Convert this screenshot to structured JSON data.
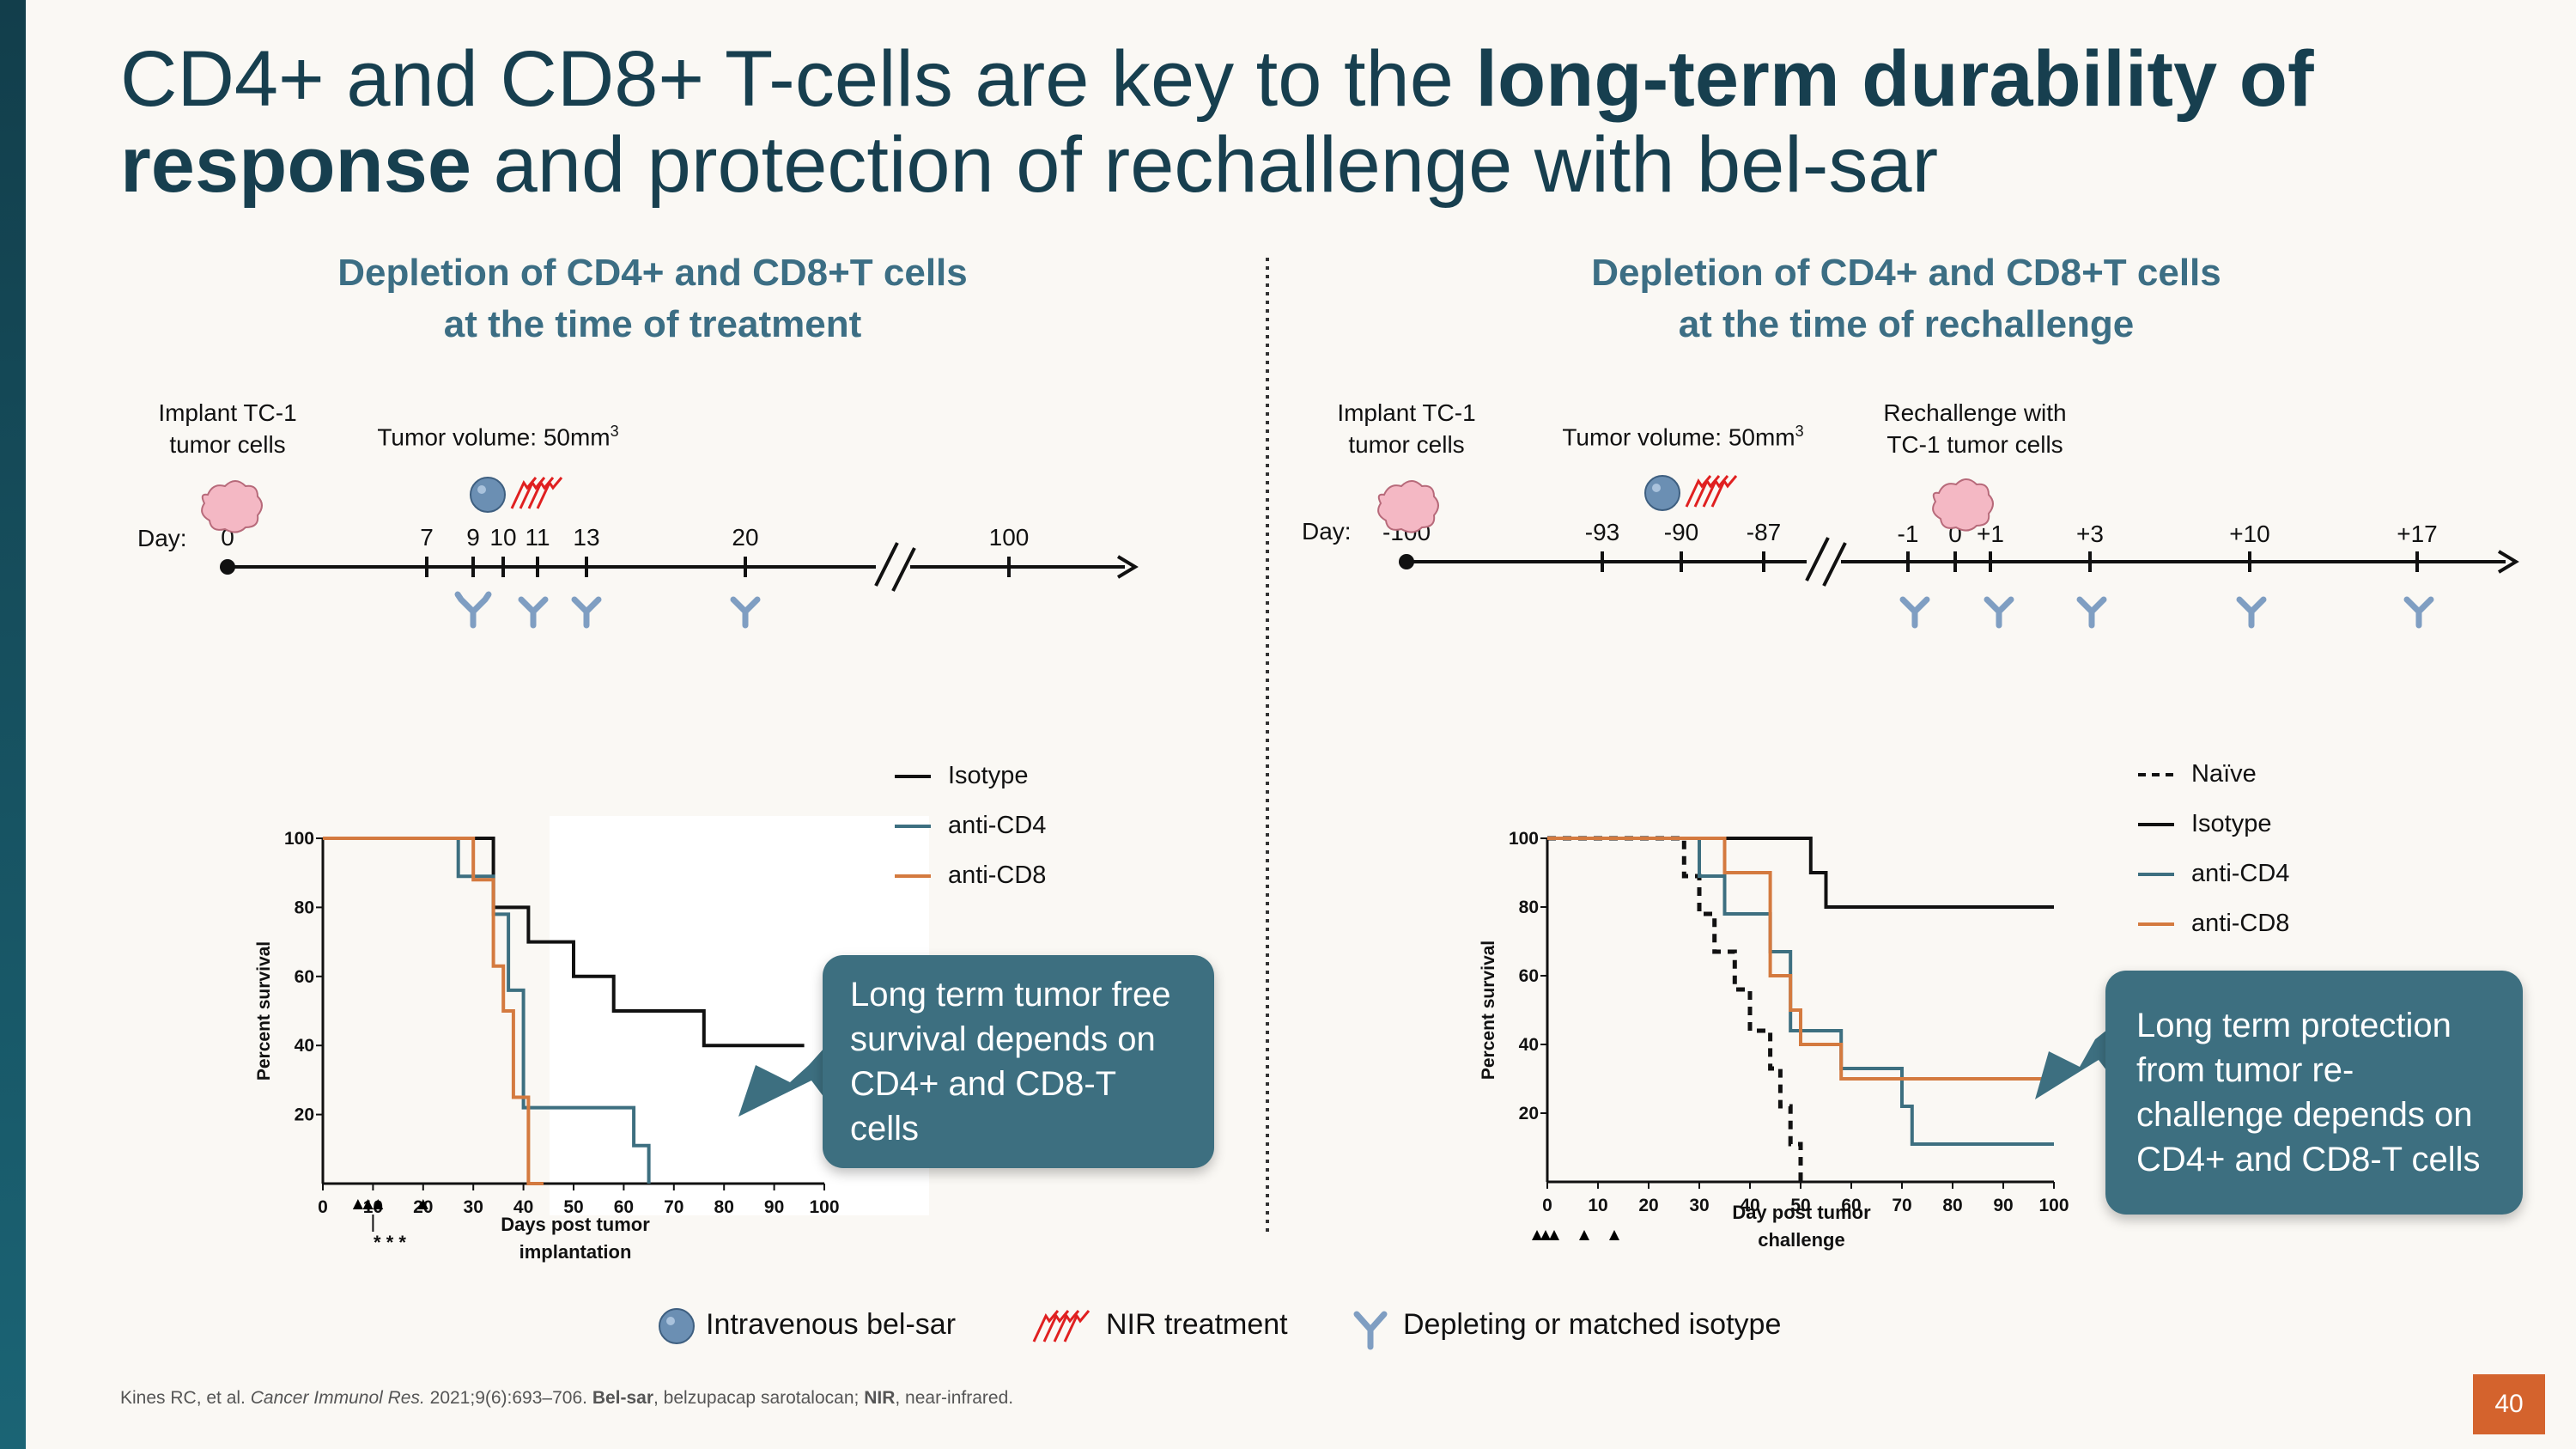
{
  "title": {
    "part1": "CD4+ and CD8+ T-cells are key to the ",
    "bold1": "long-term durability of",
    "bold2": "response",
    "part2": " and protection of rechallenge with bel-sar"
  },
  "left_panel": {
    "subtitle_line1": "Depletion of CD4+ and CD8+T cells",
    "subtitle_line2": "at the time of treatment",
    "implant_line1": "Implant TC-1",
    "implant_line2": "tumor cells",
    "tumor_volume": "Tumor volume: 50mm",
    "tumor_volume_sup": "3",
    "day_label": "Day:",
    "days": [
      "0",
      "7",
      "9",
      "10",
      "11",
      "13",
      "20",
      "100"
    ],
    "xlabel_line1": "Days post tumor",
    "xlabel_line2": "implantation",
    "asterisks": "* * *",
    "callout": "Long term tumor free survival depends on CD4+ and CD8-T cells"
  },
  "right_panel": {
    "subtitle_line1": "Depletion of CD4+ and CD8+T cells",
    "subtitle_line2": "at the time of rechallenge",
    "implant_line1": "Implant TC-1",
    "implant_line2": "tumor cells",
    "tumor_volume": "Tumor volume: 50mm",
    "tumor_volume_sup": "3",
    "rechallenge_line1": "Rechallenge with",
    "rechallenge_line2": "TC-1 tumor cells",
    "day_label": "Day:",
    "days": [
      "-100",
      "-93",
      "-90",
      "-87",
      "-1",
      "0",
      "+1",
      "+3",
      "+10",
      "+17"
    ],
    "xlabel_line1": "Day post tumor",
    "xlabel_line2": "challenge",
    "callout": "Long term protection from tumor re-challenge depends on CD4+ and CD8-T cells"
  },
  "bottom_legend": {
    "iv": "Intravenous bel-sar",
    "nir": "NIR treatment",
    "antibody": "Depleting or matched isotype"
  },
  "footer": {
    "authors": "Kines RC, et al. ",
    "journal": "Cancer Immunol Res.",
    "citation": " 2021;9(6):693–706. ",
    "belsar_abbr": "Bel-sar",
    "belsar_def": ", belzupacap sarotalocan; ",
    "nir_abbr": "NIR",
    "nir_def": ", near-infrared."
  },
  "page_number": "40",
  "colors": {
    "isotype": "#111111",
    "cd4": "#3d6f80",
    "cd8": "#d47a3f",
    "naive": "#111111",
    "title": "#173f4f",
    "subtitle": "#3c6e84",
    "accent": "#d4632d"
  },
  "chart_data": [
    {
      "type": "line",
      "title": "Depletion of CD4+ and CD8+T cells at the time of treatment",
      "xlabel": "Days post tumor implantation",
      "ylabel": "Percent survival",
      "xlim": [
        0,
        100
      ],
      "ylim": [
        0,
        100
      ],
      "xticks": [
        0,
        10,
        20,
        30,
        40,
        50,
        60,
        70,
        80,
        90,
        100
      ],
      "yticks": [
        20,
        40,
        60,
        80,
        100
      ],
      "treatment_markers_days": [
        7,
        9,
        11,
        20
      ],
      "series": [
        {
          "name": "Isotype",
          "key": "isotype",
          "style": "solid",
          "x": [
            0,
            34,
            34,
            41,
            41,
            50,
            50,
            58,
            58,
            76,
            76,
            96
          ],
          "y": [
            100,
            100,
            80,
            80,
            70,
            70,
            60,
            60,
            50,
            50,
            40,
            40
          ]
        },
        {
          "name": "anti-CD4",
          "key": "cd4",
          "style": "solid",
          "x": [
            0,
            27,
            27,
            34,
            34,
            37,
            37,
            40,
            40,
            42,
            42,
            62,
            62,
            65,
            65
          ],
          "y": [
            100,
            100,
            89,
            89,
            78,
            78,
            56,
            56,
            22,
            22,
            22,
            22,
            11,
            11,
            0
          ]
        },
        {
          "name": "anti-CD8",
          "key": "cd8",
          "style": "solid",
          "x": [
            0,
            30,
            30,
            34,
            34,
            36,
            36,
            38,
            38,
            41,
            41,
            44,
            44
          ],
          "y": [
            100,
            100,
            88,
            88,
            63,
            63,
            50,
            50,
            25,
            25,
            0,
            0,
            0
          ]
        }
      ]
    },
    {
      "type": "line",
      "title": "Depletion of CD4+ and CD8+T cells at the time of rechallenge",
      "xlabel": "Day post tumor challenge",
      "ylabel": "Percent survival",
      "xlim": [
        0,
        100
      ],
      "ylim": [
        0,
        100
      ],
      "xticks": [
        0,
        10,
        20,
        30,
        40,
        50,
        60,
        70,
        80,
        90,
        100
      ],
      "yticks": [
        20,
        40,
        60,
        80,
        100
      ],
      "treatment_markers_days": [
        -1,
        1,
        3,
        10,
        17
      ],
      "series": [
        {
          "name": "Naïve",
          "key": "naive",
          "style": "dashed",
          "x": [
            0,
            27,
            27,
            30,
            30,
            33,
            33,
            37,
            37,
            40,
            40,
            44,
            44,
            46,
            46,
            48,
            48,
            50,
            50
          ],
          "y": [
            100,
            100,
            89,
            89,
            78,
            78,
            67,
            67,
            56,
            56,
            44,
            44,
            33,
            33,
            22,
            22,
            11,
            11,
            0
          ]
        },
        {
          "name": "Isotype",
          "key": "isotype",
          "style": "solid",
          "x": [
            0,
            52,
            52,
            55,
            55,
            100
          ],
          "y": [
            100,
            100,
            90,
            90,
            80,
            80
          ]
        },
        {
          "name": "anti-CD4",
          "key": "cd4",
          "style": "solid",
          "x": [
            0,
            30,
            30,
            35,
            35,
            44,
            44,
            48,
            48,
            58,
            58,
            70,
            70,
            72,
            72,
            100
          ],
          "y": [
            100,
            100,
            89,
            89,
            78,
            78,
            67,
            67,
            44,
            44,
            33,
            33,
            22,
            22,
            11,
            11
          ]
        },
        {
          "name": "anti-CD8",
          "key": "cd8",
          "style": "solid",
          "x": [
            0,
            35,
            35,
            44,
            44,
            48,
            48,
            50,
            50,
            58,
            58,
            100
          ],
          "y": [
            100,
            100,
            90,
            90,
            60,
            60,
            50,
            50,
            40,
            40,
            30,
            30
          ]
        }
      ]
    }
  ]
}
